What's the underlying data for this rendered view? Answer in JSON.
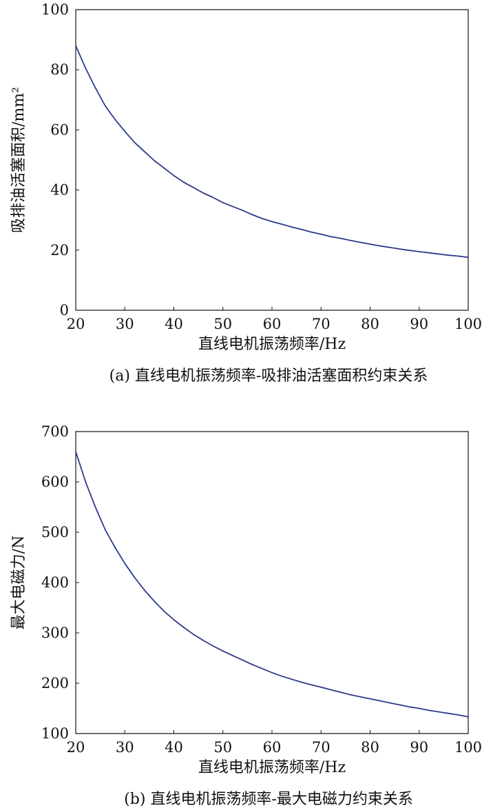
{
  "chart_data": [
    {
      "type": "line",
      "title": "",
      "caption": "(a) 直线电机振荡频率-吸排油活塞面积约束关系",
      "xlabel": "直线电机振荡频率/Hz",
      "ylabel": "吸排油活塞面积/mm²",
      "xlim": [
        20,
        100
      ],
      "ylim": [
        0,
        100
      ],
      "xticks": [
        "20",
        "30",
        "40",
        "50",
        "60",
        "70",
        "80",
        "90",
        "100"
      ],
      "yticks": [
        "0",
        "20",
        "40",
        "60",
        "80",
        "100"
      ],
      "grid": false,
      "legend": "none",
      "line_color": "#2b3a8c",
      "series": [
        {
          "x": [
            20,
            22,
            24,
            26,
            28,
            30,
            32,
            34,
            36,
            38,
            40,
            42,
            44,
            46,
            48,
            50,
            52,
            54,
            56,
            58,
            60,
            62,
            64,
            66,
            68,
            70,
            72,
            74,
            76,
            78,
            80,
            82,
            84,
            86,
            88,
            90,
            92,
            94,
            96,
            98,
            100
          ],
          "values": [
            88.0,
            80.5,
            74.0,
            68.0,
            63.5,
            59.5,
            55.8,
            52.8,
            49.8,
            47.3,
            44.8,
            42.6,
            40.8,
            39.0,
            37.5,
            35.8,
            34.5,
            33.2,
            31.8,
            30.5,
            29.5,
            28.6,
            27.7,
            26.9,
            26.0,
            25.3,
            24.5,
            23.9,
            23.2,
            22.6,
            22.0,
            21.4,
            20.9,
            20.4,
            19.9,
            19.5,
            19.1,
            18.7,
            18.3,
            18.0,
            17.6
          ]
        }
      ]
    },
    {
      "type": "line",
      "title": "",
      "caption": "(b) 直线电机振荡频率-最大电磁力约束关系",
      "xlabel": "直线电机振荡频率/Hz",
      "ylabel": "最大电磁力/N",
      "xlim": [
        20,
        100
      ],
      "ylim": [
        100,
        700
      ],
      "xticks": [
        "20",
        "30",
        "40",
        "50",
        "60",
        "70",
        "80",
        "90",
        "100"
      ],
      "yticks": [
        "100",
        "200",
        "300",
        "400",
        "500",
        "600",
        "700"
      ],
      "grid": false,
      "legend": "none",
      "line_color": "#2b3a8c",
      "series": [
        {
          "x": [
            20,
            22,
            24,
            26,
            28,
            30,
            32,
            34,
            36,
            38,
            40,
            42,
            44,
            46,
            48,
            50,
            52,
            54,
            56,
            58,
            60,
            62,
            64,
            66,
            68,
            70,
            72,
            74,
            76,
            78,
            80,
            82,
            84,
            86,
            88,
            90,
            92,
            94,
            96,
            98,
            100
          ],
          "values": [
            660,
            600,
            550,
            505,
            470,
            438,
            410,
            385,
            363,
            343,
            326,
            311,
            297,
            285,
            274,
            264,
            255,
            246,
            237,
            229,
            221,
            214,
            208,
            202,
            197,
            192,
            187,
            182,
            177,
            173,
            169,
            165,
            161,
            157,
            153,
            150,
            146,
            143,
            140,
            137,
            133
          ]
        }
      ]
    }
  ]
}
